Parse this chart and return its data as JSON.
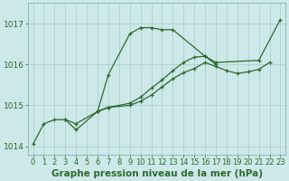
{
  "title": "Graphe pression niveau de la mer (hPa)",
  "bg_color": "#cce8e8",
  "grid_color": "#aacccc",
  "line_color": "#2d6a2d",
  "x_min": -0.5,
  "x_max": 23.5,
  "y_min": 1013.8,
  "y_max": 1017.5,
  "y_ticks": [
    1014,
    1015,
    1016,
    1017
  ],
  "series1_x": [
    0,
    1,
    2,
    3,
    4,
    6,
    7,
    9,
    10,
    11,
    12,
    13,
    16,
    17,
    21,
    23
  ],
  "series1_y": [
    1014.05,
    1014.55,
    1014.65,
    1014.65,
    1014.4,
    1014.85,
    1015.75,
    1016.75,
    1016.9,
    1016.9,
    1016.85,
    1016.85,
    1016.2,
    1016.05,
    1016.1,
    1017.1
  ],
  "series2_x": [
    3,
    4,
    6,
    7
  ],
  "series2_y": [
    1014.65,
    1014.55,
    1014.85,
    1014.95
  ],
  "series3_x": [
    6,
    7,
    9,
    10,
    11,
    12,
    13,
    14,
    15,
    16,
    17,
    18,
    19,
    20,
    21,
    22
  ],
  "series3_y": [
    1014.85,
    1014.95,
    1015.0,
    1015.1,
    1015.25,
    1015.45,
    1015.65,
    1015.8,
    1015.9,
    1016.05,
    1015.95,
    1015.85,
    1015.78,
    1015.82,
    1015.88,
    1016.05
  ],
  "series4_x": [
    6,
    7,
    9,
    10,
    11,
    12,
    13,
    14,
    15,
    16,
    17
  ],
  "series4_y": [
    1014.85,
    1014.95,
    1015.05,
    1015.2,
    1015.42,
    1015.62,
    1015.85,
    1016.05,
    1016.18,
    1016.2,
    1016.0
  ],
  "tick_fontsize": 6,
  "xlabel_fontsize": 7.5,
  "figwidth": 3.2,
  "figheight": 2.0,
  "dpi": 100
}
